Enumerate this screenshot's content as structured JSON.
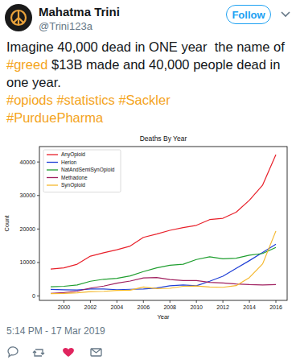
{
  "tweet": {
    "author": {
      "name": "Mahatma Trini",
      "handle": "@Trini123a"
    },
    "follow_button": "Follow",
    "text": [
      "Imagine 40,000 dead in ONE year  the name of",
      "#greed",
      "$13B made and 40,000 people dead in one year."
    ],
    "hashtags": [
      "#opiods",
      "#statistics",
      "#Sackler",
      "#PurduePharma"
    ],
    "timestamp": "5:14 PM - 17 Mar 2019"
  },
  "chart_data": {
    "type": "line",
    "title": "Deaths By Year",
    "x_label": "Year",
    "y_label": "Count",
    "x": [
      1999,
      2000,
      2001,
      2002,
      2003,
      2004,
      2005,
      2006,
      2007,
      2008,
      2009,
      2010,
      2011,
      2012,
      2013,
      2014,
      2015,
      2016
    ],
    "series": [
      {
        "name": "AnyOpioid",
        "color": "#e8202a",
        "values": [
          8050,
          8400,
          9500,
          11900,
          12900,
          13800,
          14900,
          17500,
          18500,
          19600,
          20400,
          21100,
          22800,
          23200,
          25000,
          28600,
          33100,
          42200
        ]
      },
      {
        "name": "Herion",
        "color": "#1f3fd6",
        "values": [
          1960,
          1840,
          1780,
          2090,
          2080,
          1880,
          2010,
          2090,
          2400,
          3040,
          3280,
          3040,
          4400,
          5900,
          8260,
          10570,
          12990,
          15470
        ]
      },
      {
        "name": "NatAndSemiSynOpioid",
        "color": "#1f9e2f",
        "values": [
          2750,
          2900,
          3300,
          4400,
          5000,
          5300,
          6000,
          7300,
          8400,
          9200,
          9500,
          10900,
          11700,
          11100,
          11300,
          12200,
          12700,
          14500
        ]
      },
      {
        "name": "Methadone",
        "color": "#a0205f",
        "values": [
          780,
          990,
          1460,
          2360,
          2970,
          3850,
          4460,
          5400,
          5500,
          4900,
          4600,
          4600,
          4100,
          3900,
          3600,
          3400,
          3300,
          3400
        ]
      },
      {
        "name": "SynOpioid",
        "color": "#f5b82e",
        "values": [
          730,
          780,
          960,
          1300,
          1400,
          1660,
          1740,
          2700,
          2200,
          2300,
          2900,
          3000,
          2700,
          2600,
          3100,
          5500,
          9600,
          19400
        ]
      }
    ],
    "xlim": [
      1998.15,
      2016.85
    ],
    "xticks": [
      2000,
      2002,
      2004,
      2006,
      2008,
      2010,
      2012,
      2014,
      2016
    ],
    "ylim": [
      -1300,
      44600
    ],
    "yticks": [
      0,
      10000,
      20000,
      30000,
      40000
    ],
    "grid": false,
    "legend": "upper-left"
  }
}
